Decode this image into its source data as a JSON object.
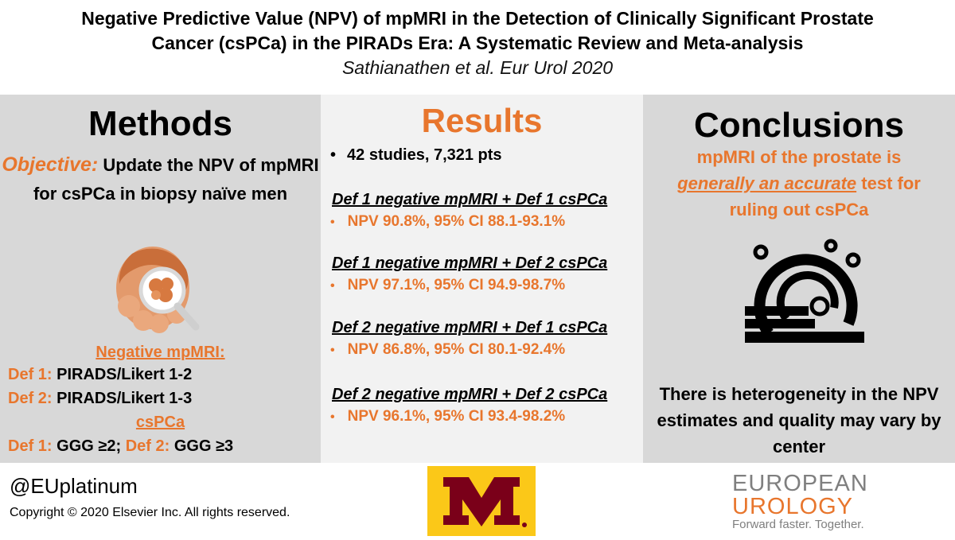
{
  "header": {
    "title_line1": "Negative Predictive Value (NPV) of mpMRI in the Detection of Clinically Significant Prostate",
    "title_line2": "Cancer (csPCa) in the PIRADs Era: A Systematic Review and Meta-analysis",
    "citation": "Sathianathen et al. Eur Urol 2020"
  },
  "methods": {
    "heading": "Methods",
    "objective_label": "Objective:",
    "objective_text": "Update the NPV of mpMRI for csPCa in biopsy naïve men",
    "negative_heading": "Negative mpMRI:",
    "def1_label": "Def 1:",
    "def1_text": "PIRADS/Likert 1-2",
    "def2_label": "Def 2:",
    "def2_text": "PIRADS/Likert 1-3",
    "cspca_heading": "csPCa",
    "cspca_def1_label": "Def 1:",
    "cspca_def1_text": "GGG ≥2;",
    "cspca_def2_label": "Def 2:",
    "cspca_def2_text": "GGG ≥3",
    "icon": "prostate-magnifier-icon"
  },
  "results": {
    "heading": "Results",
    "studies": "42 studies, 7,321 pts",
    "items": [
      {
        "heading": "Def 1 negative mpMRI + Def 1 csPCa",
        "value": "NPV 90.8%, 95% CI 88.1-93.1%"
      },
      {
        "heading": "Def 1 negative mpMRI + Def 2 csPCa",
        "value": "NPV 97.1%, 95% CI 94.9-98.7%"
      },
      {
        "heading": "Def 2 negative mpMRI + Def 1 csPCa",
        "value": "NPV 86.8%, 95% CI 80.1-92.4%"
      },
      {
        "heading": "Def 2 negative mpMRI + Def 2 csPCa",
        "value": "NPV 96.1%, 95% CI 93.4-98.2%"
      }
    ]
  },
  "conclusions": {
    "heading": "Conclusions",
    "line1": "mpMRI of the prostate is",
    "line2_underlined": "generally an accurate",
    "line2_rest": "test for",
    "line3": "ruling out csPCa",
    "statement2": "There is heterogeneity in the NPV estimates and quality may vary by center",
    "icon": "mri-scanner-icon"
  },
  "footer": {
    "handle": "@EUplatinum",
    "copyright": "Copyright © 2020 Elsevier Inc. All rights reserved.",
    "logo_m": "university-of-minnesota-logo",
    "eu_logo_line1": "EUROPEAN",
    "eu_logo_line2": "UROLOGY",
    "eu_logo_tagline": "Forward faster. Together."
  },
  "colors": {
    "accent": "#e8762d",
    "panel_gray": "#d8d8d8",
    "panel_light": "#f2f2f2",
    "maroon": "#7a0019",
    "gold": "#fbc818"
  }
}
